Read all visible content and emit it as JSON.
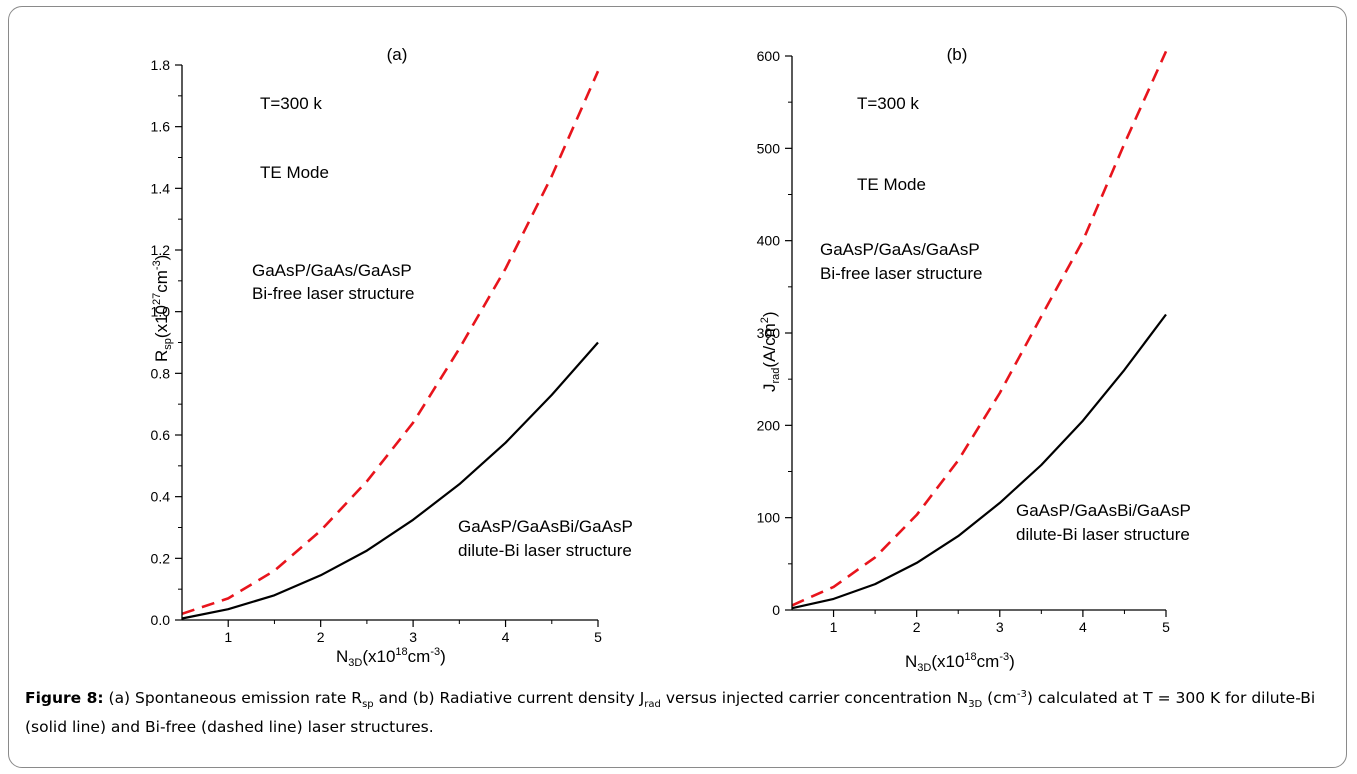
{
  "caption": {
    "label": "Figure 8:",
    "text": "(a) Spontaneous emission rate Rsp and (b) Radiative current density Jrad versus injected carrier concentration N3D (cm-3) calculated at T = 300 K for dilute-Bi (solid line) and Bi-free (dashed line) laser structures."
  },
  "chart_data": [
    {
      "type": "line",
      "title": "(a)",
      "xlabel": "N3D(x10^18cm^-3)",
      "ylabel": "Rsp(x10^27cm^-3)",
      "xlim": [
        0.5,
        5
      ],
      "ylim": [
        0,
        1.8
      ],
      "x_ticks": [
        "1",
        "2",
        "3",
        "4",
        "5"
      ],
      "y_ticks": [
        "0.0",
        "0.2",
        "0.4",
        "0.6",
        "0.8",
        "1.0",
        "1.2",
        "1.4",
        "1.6",
        "1.8"
      ],
      "annotations": {
        "temperature": "T=300 k",
        "mode": "TE Mode",
        "bifree_line1": "GaAsP/GaAs/GaAsP",
        "bifree_line2": "Bi-free laser structure",
        "dilute_line1": "GaAsP/GaAsBi/GaAsP",
        "dilute_line2": "dilute-Bi laser structure"
      },
      "series": [
        {
          "style": "dashed",
          "color": "#e8141c",
          "x": [
            0.5,
            1.0,
            1.5,
            2.0,
            2.5,
            3.0,
            3.5,
            4.0,
            4.5,
            5.0
          ],
          "y": [
            0.02,
            0.07,
            0.16,
            0.29,
            0.45,
            0.64,
            0.88,
            1.14,
            1.44,
            1.78
          ]
        },
        {
          "style": "solid",
          "color": "#000000",
          "x": [
            0.5,
            1.0,
            1.5,
            2.0,
            2.5,
            3.0,
            3.5,
            4.0,
            4.5,
            5.0
          ],
          "y": [
            0.005,
            0.035,
            0.08,
            0.145,
            0.225,
            0.325,
            0.44,
            0.575,
            0.73,
            0.9
          ]
        }
      ]
    },
    {
      "type": "line",
      "title": "(b)",
      "xlabel": "N3D(x10^18cm^-3)",
      "ylabel": "Jrad(A/cm^2)",
      "xlim": [
        0.5,
        5
      ],
      "ylim": [
        0,
        600
      ],
      "x_ticks": [
        "1",
        "2",
        "3",
        "4",
        "5"
      ],
      "y_ticks": [
        "0",
        "100",
        "200",
        "300",
        "400",
        "500",
        "600"
      ],
      "annotations": {
        "temperature": "T=300 k",
        "mode": "TE Mode",
        "bifree_line1": "GaAsP/GaAs/GaAsP",
        "bifree_line2": "Bi-free laser structure",
        "dilute_line1": "GaAsP/GaAsBi/GaAsP",
        "dilute_line2": "dilute-Bi laser structure"
      },
      "series": [
        {
          "style": "dashed",
          "color": "#e8141c",
          "x": [
            0.5,
            1.0,
            1.5,
            2.0,
            2.5,
            3.0,
            3.5,
            4.0,
            4.5,
            5.0
          ],
          "y": [
            5,
            25,
            57,
            103,
            162,
            235,
            318,
            400,
            505,
            605
          ]
        },
        {
          "style": "solid",
          "color": "#000000",
          "x": [
            0.5,
            1.0,
            1.5,
            2.0,
            2.5,
            3.0,
            3.5,
            4.0,
            4.5,
            5.0
          ],
          "y": [
            2,
            12,
            28,
            51,
            80,
            116,
            157,
            205,
            260,
            320
          ]
        }
      ]
    }
  ]
}
